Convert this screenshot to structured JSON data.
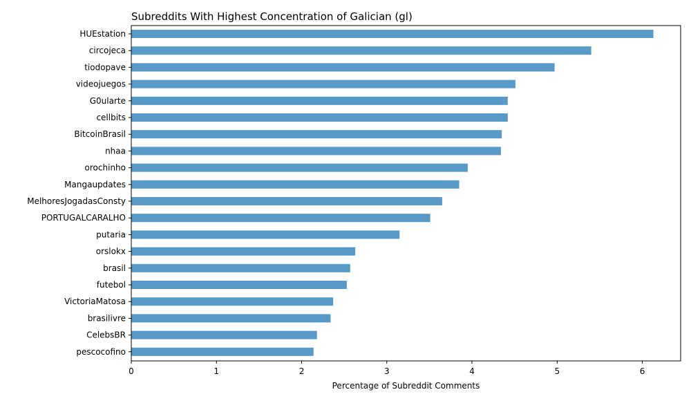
{
  "chart_data": {
    "type": "bar",
    "orientation": "horizontal",
    "title": "Subreddits With Highest Concentration of Galician (gl)",
    "xlabel": "Percentage of Subreddit Comments",
    "ylabel": "",
    "xlim": [
      0,
      6.45
    ],
    "xticks": [
      0,
      1,
      2,
      3,
      4,
      5,
      6
    ],
    "grid": false,
    "legend": "none",
    "color": "#5799c7",
    "categories": [
      "HUEstation",
      "circojeca",
      "tiodopave",
      "videojuegos",
      "G0ularte",
      "cellbits",
      "BitcoinBrasil",
      "nhaa",
      "orochinho",
      "Mangaupdates",
      "MelhoresJogadasConsty",
      "PORTUGALCARALHO",
      "putaria",
      "orslokx",
      "brasil",
      "futebol",
      "VictoriaMatosa",
      "brasilivre",
      "CelebsBR",
      "pescocofino"
    ],
    "values": [
      6.13,
      5.4,
      4.97,
      4.51,
      4.42,
      4.42,
      4.35,
      4.34,
      3.95,
      3.85,
      3.65,
      3.51,
      3.15,
      2.63,
      2.57,
      2.53,
      2.37,
      2.34,
      2.18,
      2.14
    ]
  }
}
